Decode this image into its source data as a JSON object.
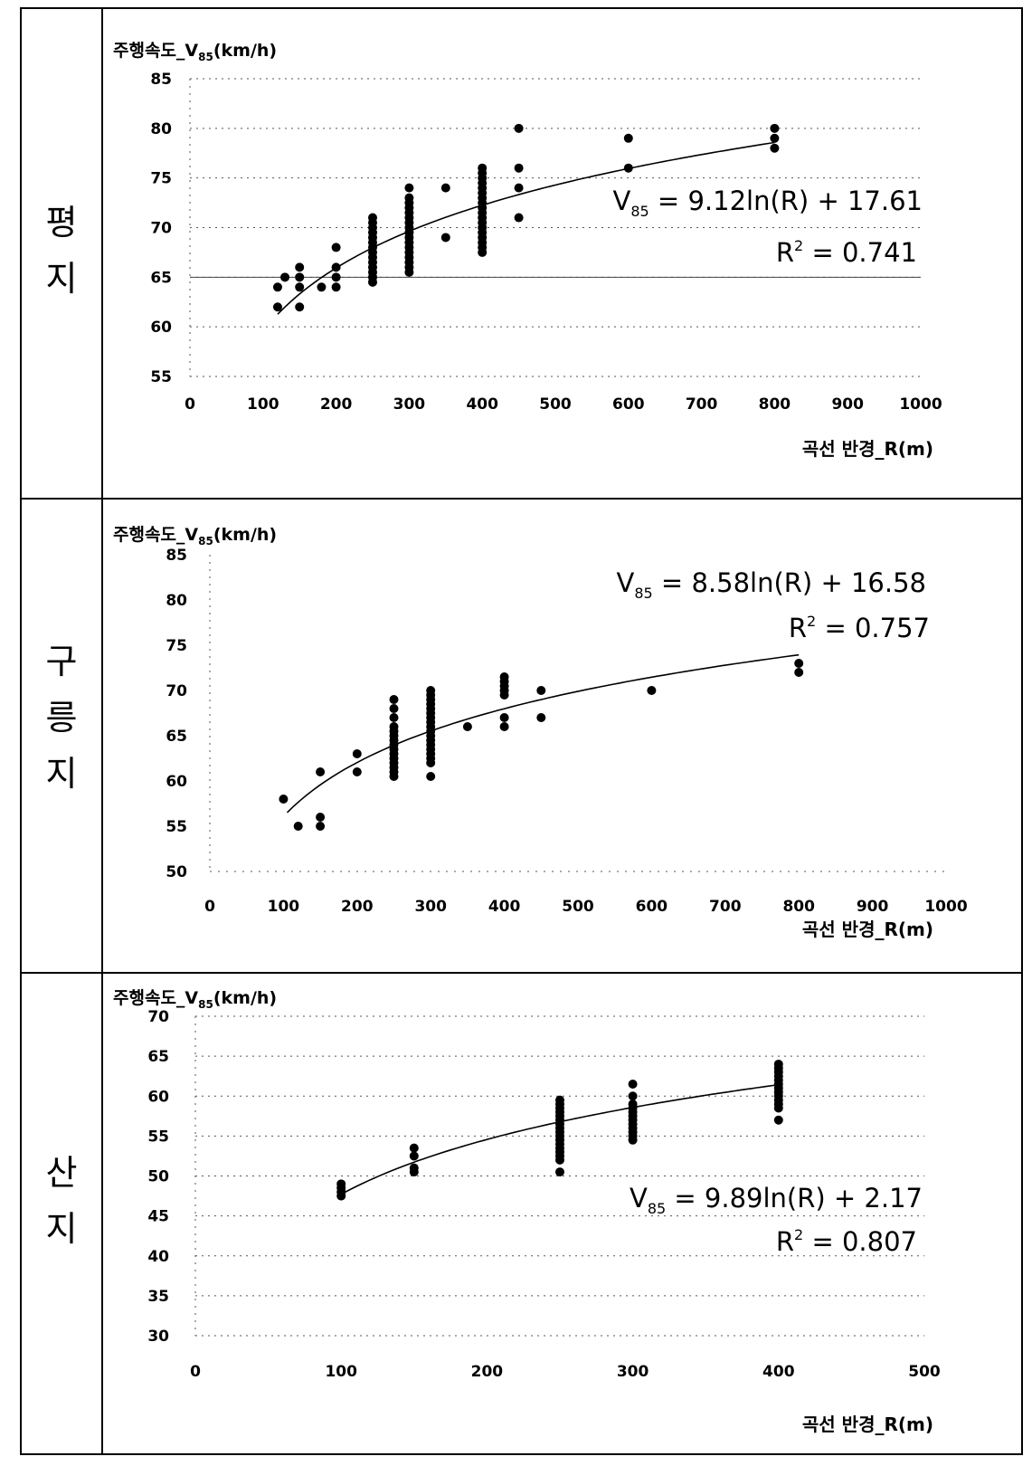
{
  "panels": [
    {
      "terrain": [
        "평",
        "지"
      ],
      "chart_data": {
        "type": "scatter",
        "ylabel": "주행속도_V85(km/h)",
        "xlabel": "곡선 반경_R(m)",
        "xlim": [
          0,
          1000
        ],
        "ylim": [
          55,
          85
        ],
        "xticks": [
          "0",
          "100",
          "200",
          "300",
          "400",
          "500",
          "600",
          "700",
          "800",
          "900",
          "1000"
        ],
        "yticks": [
          "55",
          "60",
          "65",
          "70",
          "75",
          "80",
          "85"
        ],
        "grid": true,
        "fit": {
          "type": "logarithmic",
          "a": 9.12,
          "b": 17.61,
          "x_range": [
            120,
            800
          ],
          "equation": "V85 = 9.12ln(R) + 17.61",
          "r2": "R² = 0.741"
        },
        "points": [
          [
            120,
            62
          ],
          [
            120,
            64
          ],
          [
            130,
            65
          ],
          [
            150,
            62
          ],
          [
            150,
            64
          ],
          [
            150,
            65
          ],
          [
            150,
            66
          ],
          [
            180,
            64
          ],
          [
            200,
            64
          ],
          [
            200,
            65
          ],
          [
            200,
            66
          ],
          [
            200,
            68
          ],
          [
            250,
            64.5
          ],
          [
            250,
            65
          ],
          [
            250,
            65.5
          ],
          [
            250,
            66
          ],
          [
            250,
            66.5
          ],
          [
            250,
            67
          ],
          [
            250,
            67.5
          ],
          [
            250,
            68
          ],
          [
            250,
            68.5
          ],
          [
            250,
            69
          ],
          [
            250,
            69.5
          ],
          [
            250,
            70
          ],
          [
            250,
            70.5
          ],
          [
            250,
            71
          ],
          [
            300,
            65.5
          ],
          [
            300,
            66
          ],
          [
            300,
            66.5
          ],
          [
            300,
            67
          ],
          [
            300,
            67.5
          ],
          [
            300,
            68
          ],
          [
            300,
            68.5
          ],
          [
            300,
            69
          ],
          [
            300,
            69.5
          ],
          [
            300,
            70
          ],
          [
            300,
            70.5
          ],
          [
            300,
            71
          ],
          [
            300,
            71.5
          ],
          [
            300,
            72
          ],
          [
            300,
            72.5
          ],
          [
            300,
            73
          ],
          [
            300,
            74
          ],
          [
            350,
            69
          ],
          [
            350,
            74
          ],
          [
            400,
            67.5
          ],
          [
            400,
            68
          ],
          [
            400,
            68.5
          ],
          [
            400,
            69
          ],
          [
            400,
            69.5
          ],
          [
            400,
            70
          ],
          [
            400,
            70.5
          ],
          [
            400,
            71
          ],
          [
            400,
            71.5
          ],
          [
            400,
            72
          ],
          [
            400,
            72.5
          ],
          [
            400,
            73
          ],
          [
            400,
            73.5
          ],
          [
            400,
            74
          ],
          [
            400,
            74.5
          ],
          [
            400,
            75
          ],
          [
            400,
            75.5
          ],
          [
            400,
            76
          ],
          [
            450,
            71
          ],
          [
            450,
            74
          ],
          [
            450,
            76
          ],
          [
            450,
            80
          ],
          [
            600,
            76
          ],
          [
            600,
            79
          ],
          [
            800,
            78
          ],
          [
            800,
            79
          ],
          [
            800,
            80
          ]
        ]
      }
    },
    {
      "terrain": [
        "구",
        "릉",
        "지"
      ],
      "chart_data": {
        "type": "scatter",
        "ylabel": "주행속도_V85(km/h)",
        "xlabel": "곡선 반경_R(m)",
        "xlim": [
          0,
          1000
        ],
        "ylim": [
          50,
          85
        ],
        "xticks": [
          "0",
          "100",
          "200",
          "300",
          "400",
          "500",
          "600",
          "700",
          "800",
          "900",
          "1000"
        ],
        "yticks": [
          "50",
          "55",
          "60",
          "65",
          "70",
          "75",
          "80",
          "85"
        ],
        "grid": false,
        "fit": {
          "type": "logarithmic",
          "a": 8.58,
          "b": 16.58,
          "x_range": [
            105,
            800
          ],
          "equation": "V85 = 8.58ln(R) + 16.58",
          "r2": "R² = 0.757"
        },
        "points": [
          [
            100,
            58
          ],
          [
            120,
            55
          ],
          [
            150,
            55
          ],
          [
            150,
            56
          ],
          [
            150,
            61
          ],
          [
            200,
            61
          ],
          [
            200,
            63
          ],
          [
            250,
            60.5
          ],
          [
            250,
            61
          ],
          [
            250,
            61.5
          ],
          [
            250,
            62
          ],
          [
            250,
            62.5
          ],
          [
            250,
            63
          ],
          [
            250,
            63.5
          ],
          [
            250,
            64
          ],
          [
            250,
            64.5
          ],
          [
            250,
            65
          ],
          [
            250,
            65.5
          ],
          [
            250,
            66
          ],
          [
            250,
            67
          ],
          [
            250,
            68
          ],
          [
            250,
            69
          ],
          [
            300,
            60.5
          ],
          [
            300,
            62
          ],
          [
            300,
            62.5
          ],
          [
            300,
            63
          ],
          [
            300,
            63.5
          ],
          [
            300,
            64
          ],
          [
            300,
            64.5
          ],
          [
            300,
            65
          ],
          [
            300,
            65.5
          ],
          [
            300,
            66
          ],
          [
            300,
            66.5
          ],
          [
            300,
            67
          ],
          [
            300,
            67.5
          ],
          [
            300,
            68
          ],
          [
            300,
            68.5
          ],
          [
            300,
            69
          ],
          [
            300,
            69.5
          ],
          [
            300,
            70
          ],
          [
            350,
            66
          ],
          [
            400,
            66
          ],
          [
            400,
            67
          ],
          [
            400,
            69.5
          ],
          [
            400,
            70
          ],
          [
            400,
            70.5
          ],
          [
            400,
            71
          ],
          [
            400,
            71.5
          ],
          [
            450,
            67
          ],
          [
            450,
            70
          ],
          [
            600,
            70
          ],
          [
            800,
            72
          ],
          [
            800,
            73
          ]
        ]
      }
    },
    {
      "terrain": [
        "산",
        "지"
      ],
      "chart_data": {
        "type": "scatter",
        "ylabel": "주행속도_V85(km/h)",
        "xlabel": "곡선 반경_R(m)",
        "xlim": [
          0,
          500
        ],
        "ylim": [
          30,
          70
        ],
        "xticks": [
          "0",
          "100",
          "200",
          "300",
          "400",
          "500"
        ],
        "yticks": [
          "30",
          "35",
          "40",
          "45",
          "50",
          "55",
          "60",
          "65",
          "70"
        ],
        "grid": true,
        "fit": {
          "type": "logarithmic",
          "a": 9.89,
          "b": 2.17,
          "x_range": [
            100,
            400
          ],
          "equation": "V85 = 9.89ln(R) + 2.17",
          "r2": "R² = 0.807"
        },
        "points": [
          [
            100,
            47.5
          ],
          [
            100,
            48
          ],
          [
            100,
            48.5
          ],
          [
            100,
            49
          ],
          [
            150,
            50.5
          ],
          [
            150,
            51
          ],
          [
            150,
            52.5
          ],
          [
            150,
            53.5
          ],
          [
            250,
            50.5
          ],
          [
            250,
            52
          ],
          [
            250,
            52.5
          ],
          [
            250,
            53
          ],
          [
            250,
            53.5
          ],
          [
            250,
            54
          ],
          [
            250,
            54.5
          ],
          [
            250,
            55
          ],
          [
            250,
            55.5
          ],
          [
            250,
            56
          ],
          [
            250,
            56.5
          ],
          [
            250,
            57
          ],
          [
            250,
            57.5
          ],
          [
            250,
            58
          ],
          [
            250,
            58.5
          ],
          [
            250,
            59
          ],
          [
            250,
            59.5
          ],
          [
            300,
            54.5
          ],
          [
            300,
            55
          ],
          [
            300,
            55.5
          ],
          [
            300,
            56
          ],
          [
            300,
            56.5
          ],
          [
            300,
            57
          ],
          [
            300,
            57.5
          ],
          [
            300,
            58
          ],
          [
            300,
            58.5
          ],
          [
            300,
            59
          ],
          [
            300,
            60
          ],
          [
            300,
            61.5
          ],
          [
            400,
            57
          ],
          [
            400,
            58.5
          ],
          [
            400,
            59
          ],
          [
            400,
            59.5
          ],
          [
            400,
            60
          ],
          [
            400,
            60.5
          ],
          [
            400,
            61
          ],
          [
            400,
            61.5
          ],
          [
            400,
            62
          ],
          [
            400,
            62.5
          ],
          [
            400,
            63
          ],
          [
            400,
            63.5
          ],
          [
            400,
            64
          ]
        ]
      }
    }
  ]
}
